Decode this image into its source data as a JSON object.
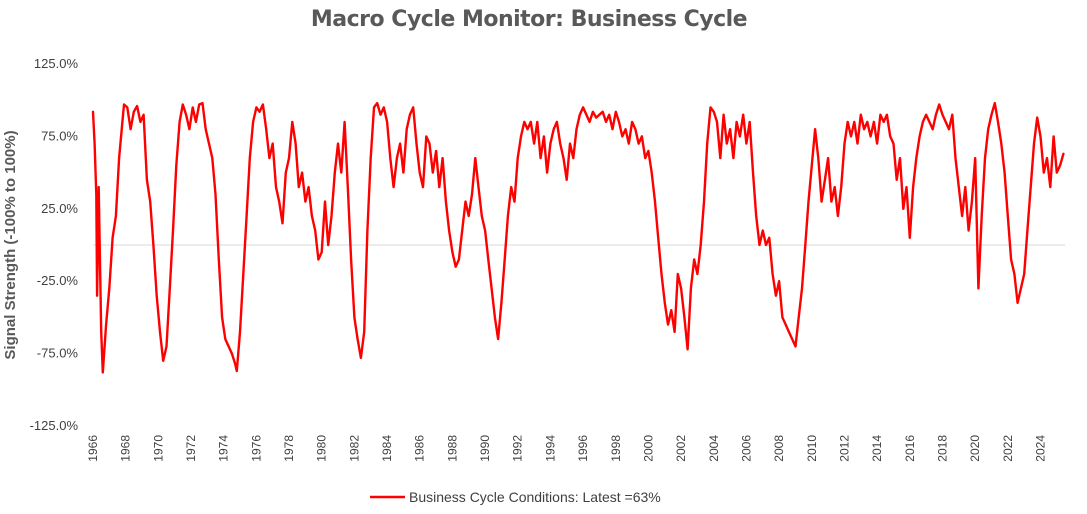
{
  "chart_data": {
    "type": "line",
    "title": "Macro Cycle Monitor: Business Cycle",
    "xlabel": "",
    "ylabel": "Signal Strength (-100% to 100%)",
    "ylim": [
      -125,
      125
    ],
    "xlim": [
      1966,
      2025.5
    ],
    "y_ticks": [
      "125.0%",
      "75.0%",
      "25.0%",
      "-25.0%",
      "-75.0%",
      "-125.0%"
    ],
    "y_tick_values": [
      125,
      75,
      25,
      -25,
      -75,
      -125
    ],
    "x_ticks": [
      "1966",
      "1968",
      "1970",
      "1972",
      "1974",
      "1976",
      "1978",
      "1980",
      "1982",
      "1984",
      "1986",
      "1988",
      "1990",
      "1992",
      "1994",
      "1996",
      "1998",
      "2000",
      "2002",
      "2004",
      "2006",
      "2008",
      "2010",
      "2012",
      "2014",
      "2016",
      "2018",
      "2020",
      "2022",
      "2024"
    ],
    "grid": false,
    "zero_line": true,
    "legend": "bottom-center",
    "colors": {
      "series": "#ff0000",
      "zero_line": "#d9d9d9"
    },
    "series": [
      {
        "name": "Business Cycle Conditions: Latest =63%",
        "points": [
          [
            1966.0,
            92
          ],
          [
            1966.1,
            70
          ],
          [
            1966.2,
            35
          ],
          [
            1966.25,
            -35
          ],
          [
            1966.35,
            40
          ],
          [
            1966.5,
            -60
          ],
          [
            1966.6,
            -88
          ],
          [
            1966.8,
            -55
          ],
          [
            1967.0,
            -30
          ],
          [
            1967.2,
            5
          ],
          [
            1967.4,
            20
          ],
          [
            1967.6,
            60
          ],
          [
            1967.8,
            85
          ],
          [
            1967.9,
            97
          ],
          [
            1968.1,
            95
          ],
          [
            1968.3,
            80
          ],
          [
            1968.5,
            92
          ],
          [
            1968.7,
            96
          ],
          [
            1968.9,
            85
          ],
          [
            1969.1,
            90
          ],
          [
            1969.3,
            45
          ],
          [
            1969.5,
            30
          ],
          [
            1969.7,
            0
          ],
          [
            1969.9,
            -35
          ],
          [
            1970.1,
            -60
          ],
          [
            1970.3,
            -80
          ],
          [
            1970.5,
            -70
          ],
          [
            1970.7,
            -30
          ],
          [
            1970.9,
            10
          ],
          [
            1971.1,
            55
          ],
          [
            1971.3,
            85
          ],
          [
            1971.5,
            97
          ],
          [
            1971.7,
            90
          ],
          [
            1971.9,
            80
          ],
          [
            1972.1,
            95
          ],
          [
            1972.3,
            85
          ],
          [
            1972.5,
            97
          ],
          [
            1972.7,
            98
          ],
          [
            1972.9,
            80
          ],
          [
            1973.1,
            70
          ],
          [
            1973.3,
            60
          ],
          [
            1973.5,
            35
          ],
          [
            1973.7,
            -10
          ],
          [
            1973.9,
            -50
          ],
          [
            1974.1,
            -65
          ],
          [
            1974.3,
            -70
          ],
          [
            1974.5,
            -75
          ],
          [
            1974.7,
            -82
          ],
          [
            1974.8,
            -87
          ],
          [
            1975.0,
            -60
          ],
          [
            1975.2,
            -20
          ],
          [
            1975.4,
            20
          ],
          [
            1975.6,
            60
          ],
          [
            1975.8,
            85
          ],
          [
            1976.0,
            95
          ],
          [
            1976.2,
            92
          ],
          [
            1976.4,
            97
          ],
          [
            1976.6,
            80
          ],
          [
            1976.8,
            60
          ],
          [
            1977.0,
            70
          ],
          [
            1977.2,
            40
          ],
          [
            1977.4,
            30
          ],
          [
            1977.6,
            15
          ],
          [
            1977.8,
            50
          ],
          [
            1978.0,
            60
          ],
          [
            1978.2,
            85
          ],
          [
            1978.4,
            70
          ],
          [
            1978.6,
            40
          ],
          [
            1978.8,
            50
          ],
          [
            1979.0,
            30
          ],
          [
            1979.2,
            40
          ],
          [
            1979.4,
            20
          ],
          [
            1979.6,
            10
          ],
          [
            1979.8,
            -10
          ],
          [
            1980.0,
            -5
          ],
          [
            1980.2,
            30
          ],
          [
            1980.4,
            0
          ],
          [
            1980.6,
            20
          ],
          [
            1980.8,
            50
          ],
          [
            1981.0,
            70
          ],
          [
            1981.2,
            50
          ],
          [
            1981.4,
            85
          ],
          [
            1981.6,
            40
          ],
          [
            1981.8,
            -10
          ],
          [
            1982.0,
            -50
          ],
          [
            1982.2,
            -65
          ],
          [
            1982.4,
            -78
          ],
          [
            1982.6,
            -60
          ],
          [
            1982.8,
            10
          ],
          [
            1983.0,
            60
          ],
          [
            1983.2,
            95
          ],
          [
            1983.4,
            98
          ],
          [
            1983.6,
            90
          ],
          [
            1983.8,
            95
          ],
          [
            1984.0,
            85
          ],
          [
            1984.2,
            60
          ],
          [
            1984.4,
            40
          ],
          [
            1984.6,
            60
          ],
          [
            1984.8,
            70
          ],
          [
            1985.0,
            50
          ],
          [
            1985.2,
            80
          ],
          [
            1985.4,
            90
          ],
          [
            1985.6,
            95
          ],
          [
            1985.8,
            70
          ],
          [
            1986.0,
            50
          ],
          [
            1986.2,
            40
          ],
          [
            1986.4,
            75
          ],
          [
            1986.6,
            70
          ],
          [
            1986.8,
            50
          ],
          [
            1987.0,
            65
          ],
          [
            1987.2,
            40
          ],
          [
            1987.4,
            60
          ],
          [
            1987.6,
            30
          ],
          [
            1987.8,
            10
          ],
          [
            1988.0,
            -5
          ],
          [
            1988.2,
            -15
          ],
          [
            1988.4,
            -10
          ],
          [
            1988.6,
            10
          ],
          [
            1988.8,
            30
          ],
          [
            1989.0,
            20
          ],
          [
            1989.2,
            35
          ],
          [
            1989.4,
            60
          ],
          [
            1989.6,
            40
          ],
          [
            1989.8,
            20
          ],
          [
            1990.0,
            10
          ],
          [
            1990.2,
            -10
          ],
          [
            1990.4,
            -30
          ],
          [
            1990.6,
            -50
          ],
          [
            1990.8,
            -65
          ],
          [
            1991.0,
            -40
          ],
          [
            1991.2,
            -10
          ],
          [
            1991.4,
            20
          ],
          [
            1991.6,
            40
          ],
          [
            1991.8,
            30
          ],
          [
            1992.0,
            60
          ],
          [
            1992.2,
            75
          ],
          [
            1992.4,
            85
          ],
          [
            1992.6,
            80
          ],
          [
            1992.8,
            85
          ],
          [
            1993.0,
            70
          ],
          [
            1993.2,
            85
          ],
          [
            1993.4,
            60
          ],
          [
            1993.6,
            75
          ],
          [
            1993.8,
            50
          ],
          [
            1994.0,
            70
          ],
          [
            1994.2,
            80
          ],
          [
            1994.4,
            85
          ],
          [
            1994.6,
            70
          ],
          [
            1994.8,
            60
          ],
          [
            1995.0,
            45
          ],
          [
            1995.2,
            70
          ],
          [
            1995.4,
            60
          ],
          [
            1995.6,
            80
          ],
          [
            1995.8,
            90
          ],
          [
            1996.0,
            95
          ],
          [
            1996.2,
            90
          ],
          [
            1996.4,
            85
          ],
          [
            1996.6,
            92
          ],
          [
            1996.8,
            88
          ],
          [
            1997.0,
            90
          ],
          [
            1997.2,
            92
          ],
          [
            1997.4,
            85
          ],
          [
            1997.6,
            90
          ],
          [
            1997.8,
            80
          ],
          [
            1998.0,
            92
          ],
          [
            1998.2,
            85
          ],
          [
            1998.4,
            75
          ],
          [
            1998.6,
            80
          ],
          [
            1998.8,
            70
          ],
          [
            1999.0,
            85
          ],
          [
            1999.2,
            80
          ],
          [
            1999.4,
            70
          ],
          [
            1999.6,
            75
          ],
          [
            1999.8,
            60
          ],
          [
            2000.0,
            65
          ],
          [
            2000.2,
            50
          ],
          [
            2000.4,
            30
          ],
          [
            2000.6,
            5
          ],
          [
            2000.8,
            -20
          ],
          [
            2001.0,
            -40
          ],
          [
            2001.2,
            -55
          ],
          [
            2001.4,
            -45
          ],
          [
            2001.6,
            -60
          ],
          [
            2001.8,
            -20
          ],
          [
            2002.0,
            -30
          ],
          [
            2002.2,
            -50
          ],
          [
            2002.4,
            -72
          ],
          [
            2002.6,
            -30
          ],
          [
            2002.8,
            -10
          ],
          [
            2003.0,
            -20
          ],
          [
            2003.2,
            0
          ],
          [
            2003.4,
            30
          ],
          [
            2003.6,
            70
          ],
          [
            2003.8,
            95
          ],
          [
            2004.0,
            92
          ],
          [
            2004.2,
            85
          ],
          [
            2004.4,
            60
          ],
          [
            2004.6,
            90
          ],
          [
            2004.8,
            70
          ],
          [
            2005.0,
            80
          ],
          [
            2005.2,
            60
          ],
          [
            2005.4,
            85
          ],
          [
            2005.6,
            75
          ],
          [
            2005.8,
            90
          ],
          [
            2006.0,
            70
          ],
          [
            2006.2,
            85
          ],
          [
            2006.4,
            50
          ],
          [
            2006.6,
            20
          ],
          [
            2006.8,
            0
          ],
          [
            2007.0,
            10
          ],
          [
            2007.2,
            0
          ],
          [
            2007.4,
            5
          ],
          [
            2007.6,
            -20
          ],
          [
            2007.8,
            -35
          ],
          [
            2008.0,
            -25
          ],
          [
            2008.2,
            -50
          ],
          [
            2008.4,
            -55
          ],
          [
            2008.6,
            -60
          ],
          [
            2008.8,
            -65
          ],
          [
            2009.0,
            -70
          ],
          [
            2009.2,
            -50
          ],
          [
            2009.4,
            -30
          ],
          [
            2009.6,
            0
          ],
          [
            2009.8,
            30
          ],
          [
            2010.0,
            55
          ],
          [
            2010.2,
            80
          ],
          [
            2010.4,
            60
          ],
          [
            2010.6,
            30
          ],
          [
            2010.8,
            45
          ],
          [
            2011.0,
            60
          ],
          [
            2011.2,
            30
          ],
          [
            2011.4,
            40
          ],
          [
            2011.6,
            20
          ],
          [
            2011.8,
            40
          ],
          [
            2012.0,
            70
          ],
          [
            2012.2,
            85
          ],
          [
            2012.4,
            75
          ],
          [
            2012.6,
            85
          ],
          [
            2012.8,
            70
          ],
          [
            2013.0,
            90
          ],
          [
            2013.2,
            80
          ],
          [
            2013.4,
            85
          ],
          [
            2013.6,
            75
          ],
          [
            2013.8,
            85
          ],
          [
            2014.0,
            70
          ],
          [
            2014.2,
            90
          ],
          [
            2014.4,
            85
          ],
          [
            2014.6,
            90
          ],
          [
            2014.8,
            75
          ],
          [
            2015.0,
            70
          ],
          [
            2015.2,
            45
          ],
          [
            2015.4,
            60
          ],
          [
            2015.6,
            25
          ],
          [
            2015.8,
            40
          ],
          [
            2016.0,
            5
          ],
          [
            2016.2,
            40
          ],
          [
            2016.4,
            60
          ],
          [
            2016.6,
            75
          ],
          [
            2016.8,
            85
          ],
          [
            2017.0,
            90
          ],
          [
            2017.2,
            85
          ],
          [
            2017.4,
            80
          ],
          [
            2017.6,
            90
          ],
          [
            2017.8,
            97
          ],
          [
            2018.0,
            90
          ],
          [
            2018.2,
            85
          ],
          [
            2018.4,
            80
          ],
          [
            2018.6,
            90
          ],
          [
            2018.8,
            60
          ],
          [
            2019.0,
            40
          ],
          [
            2019.2,
            20
          ],
          [
            2019.4,
            40
          ],
          [
            2019.6,
            10
          ],
          [
            2019.8,
            30
          ],
          [
            2020.0,
            60
          ],
          [
            2020.2,
            -30
          ],
          [
            2020.4,
            20
          ],
          [
            2020.6,
            60
          ],
          [
            2020.8,
            80
          ],
          [
            2021.0,
            90
          ],
          [
            2021.2,
            98
          ],
          [
            2021.4,
            85
          ],
          [
            2021.6,
            70
          ],
          [
            2021.8,
            50
          ],
          [
            2022.0,
            20
          ],
          [
            2022.2,
            -10
          ],
          [
            2022.4,
            -20
          ],
          [
            2022.6,
            -40
          ],
          [
            2022.8,
            -30
          ],
          [
            2023.0,
            -20
          ],
          [
            2023.2,
            10
          ],
          [
            2023.4,
            40
          ],
          [
            2023.6,
            70
          ],
          [
            2023.8,
            88
          ],
          [
            2024.0,
            75
          ],
          [
            2024.2,
            50
          ],
          [
            2024.4,
            60
          ],
          [
            2024.6,
            40
          ],
          [
            2024.8,
            75
          ],
          [
            2025.0,
            50
          ],
          [
            2025.2,
            55
          ],
          [
            2025.4,
            63
          ]
        ]
      }
    ]
  }
}
